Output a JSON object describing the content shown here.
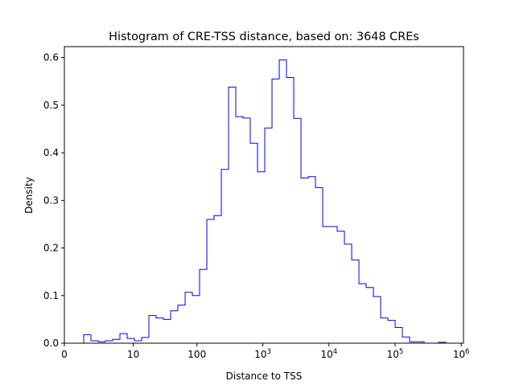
{
  "chart_data": {
    "type": "histogram",
    "title": "Histogram of CRE-TSS distance, based on: 3648 CREs",
    "xlabel": "Distance to TSS",
    "ylabel": "Density",
    "x_scale": "log (0 mapped at origin)",
    "bins": {
      "count": 50,
      "first_edge": 0.96,
      "last_edge": 585000,
      "spacing": "log"
    },
    "values": [
      0.018,
      0.005,
      0.003,
      0.005,
      0.008,
      0.02,
      0.01,
      0.005,
      0.012,
      0.058,
      0.053,
      0.05,
      0.068,
      0.08,
      0.107,
      0.1,
      0.155,
      0.26,
      0.268,
      0.365,
      0.538,
      0.476,
      0.473,
      0.42,
      0.36,
      0.452,
      0.555,
      0.595,
      0.558,
      0.472,
      0.347,
      0.35,
      0.327,
      0.245,
      0.245,
      0.235,
      0.208,
      0.175,
      0.125,
      0.117,
      0.098,
      0.053,
      0.048,
      0.033,
      0.013,
      0.003,
      0.003,
      0.0,
      0.0,
      0.002
    ],
    "xticks": [
      {
        "v": 0,
        "base": "0",
        "exp": ""
      },
      {
        "v": 10,
        "base": "10",
        "exp": ""
      },
      {
        "v": 100,
        "base": "100",
        "exp": ""
      },
      {
        "v": 1000,
        "base": "10",
        "exp": "3"
      },
      {
        "v": 10000,
        "base": "10",
        "exp": "4"
      },
      {
        "v": 100000,
        "base": "10",
        "exp": "5"
      },
      {
        "v": 1000000,
        "base": "10",
        "exp": "6"
      }
    ],
    "yticks": [
      "0.0",
      "0.1",
      "0.2",
      "0.3",
      "0.4",
      "0.5",
      "0.6"
    ],
    "ylim": [
      0,
      0.623
    ],
    "color": "#0000ff",
    "grid": false
  }
}
